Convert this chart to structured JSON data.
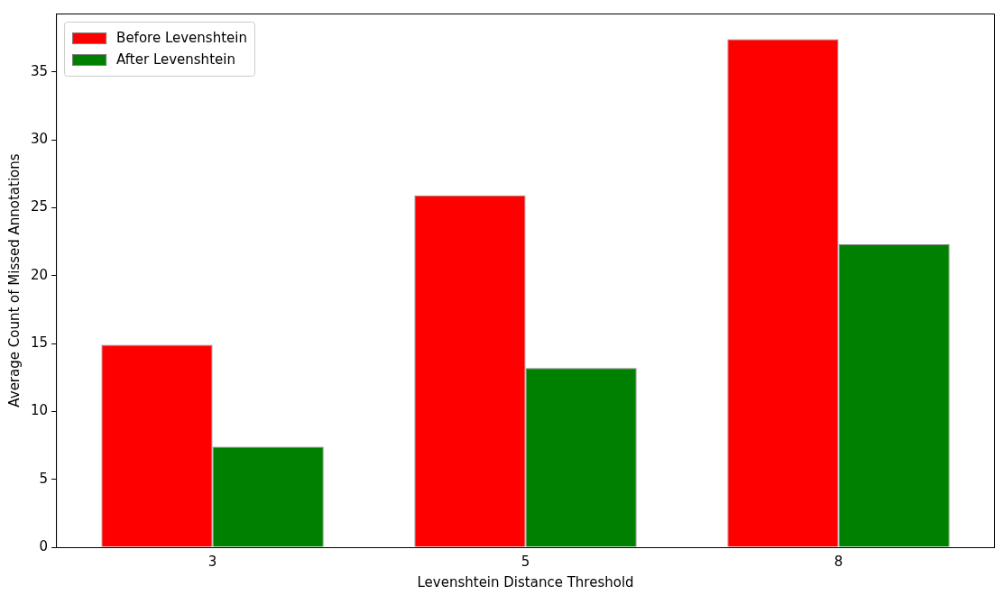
{
  "chart_data": {
    "type": "bar",
    "xlabel": "Levenshtein Distance Threshold",
    "ylabel": "Average Count of Missed Annotations",
    "categories": [
      "3",
      "5",
      "8"
    ],
    "series": [
      {
        "name": "Before Levenshtein",
        "color": "#ff0000",
        "values": [
          14.9,
          25.9,
          37.4
        ]
      },
      {
        "name": "After Levenshtein",
        "color": "#008000",
        "values": [
          7.4,
          13.2,
          22.3
        ]
      }
    ],
    "ylim": [
      0,
      39.3
    ],
    "yticks": [
      0,
      5,
      10,
      15,
      20,
      25,
      30,
      35
    ],
    "grid": false,
    "legend": "top left"
  }
}
